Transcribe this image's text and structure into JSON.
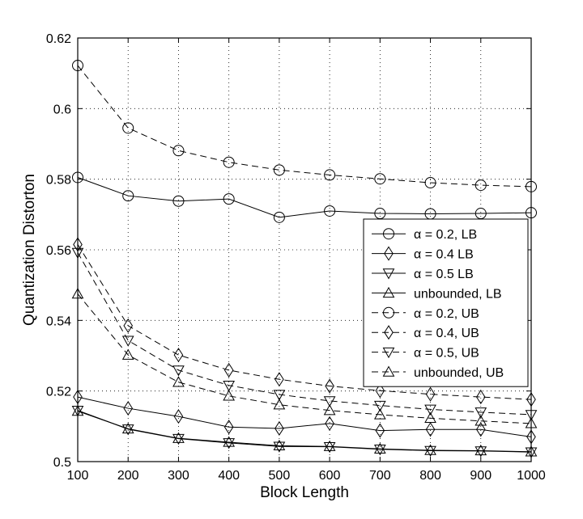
{
  "chart_data": {
    "type": "line",
    "title": "",
    "xlabel": "Block Length",
    "ylabel": "Quantization Distorton",
    "xlim": [
      100,
      1000
    ],
    "ylim": [
      0.5,
      0.62
    ],
    "xticks": [
      100,
      200,
      300,
      400,
      500,
      600,
      700,
      800,
      900,
      1000
    ],
    "xtick_labels": [
      "100",
      "200",
      "300",
      "400",
      "500",
      "600",
      "700",
      "800",
      "900",
      "1000"
    ],
    "yticks": [
      0.5,
      0.52,
      0.54,
      0.56,
      0.58,
      0.6,
      0.62
    ],
    "ytick_labels": [
      "0.5",
      "0.52",
      "0.54",
      "0.56",
      "0.58",
      "0.6",
      "0.62"
    ],
    "grid": true,
    "legend_position": "right",
    "x": [
      100,
      200,
      300,
      400,
      500,
      600,
      700,
      800,
      900,
      1000
    ],
    "series": [
      {
        "name": "α = 0.2, LB",
        "marker": "circle",
        "dash": "solid",
        "values": [
          0.5805,
          0.5753,
          0.5738,
          0.5744,
          0.5692,
          0.571,
          0.5703,
          0.5702,
          0.5703,
          0.5705
        ]
      },
      {
        "name": "α = 0.4 LB",
        "marker": "diamond",
        "dash": "solid",
        "values": [
          0.5183,
          0.5151,
          0.5128,
          0.5098,
          0.5094,
          0.5108,
          0.5088,
          0.5091,
          0.5091,
          0.507
        ]
      },
      {
        "name": "α = 0.5 LB",
        "marker": "triangle-down",
        "dash": "solid",
        "values": [
          0.5145,
          0.5092,
          0.5065,
          0.5053,
          0.5043,
          0.5042,
          0.5035,
          0.5031,
          0.503,
          0.5027
        ]
      },
      {
        "name": "unbounded, LB",
        "marker": "triangle-up",
        "dash": "solid",
        "values": [
          0.5143,
          0.5093,
          0.5066,
          0.5055,
          0.5045,
          0.5043,
          0.5036,
          0.5032,
          0.5031,
          0.5028
        ]
      },
      {
        "name": "α = 0.2, UB",
        "marker": "circle",
        "dash": "dashed",
        "values": [
          0.6122,
          0.5945,
          0.5881,
          0.5848,
          0.5826,
          0.5812,
          0.5801,
          0.579,
          0.5783,
          0.5779
        ]
      },
      {
        "name": "α = 0.4, UB",
        "marker": "diamond",
        "dash": "dashed",
        "values": [
          0.5615,
          0.5385,
          0.5302,
          0.5259,
          0.5233,
          0.5214,
          0.5201,
          0.5191,
          0.5183,
          0.5176
        ]
      },
      {
        "name": "α = 0.5, UB",
        "marker": "triangle-down",
        "dash": "dashed",
        "values": [
          0.5592,
          0.5343,
          0.5259,
          0.5216,
          0.519,
          0.5172,
          0.5159,
          0.5148,
          0.514,
          0.5133
        ]
      },
      {
        "name": "unbounded, UB",
        "marker": "triangle-up",
        "dash": "dashed",
        "values": [
          0.5475,
          0.5302,
          0.5225,
          0.5186,
          0.5161,
          0.5145,
          0.5133,
          0.5123,
          0.5115,
          0.5108
        ]
      }
    ]
  }
}
